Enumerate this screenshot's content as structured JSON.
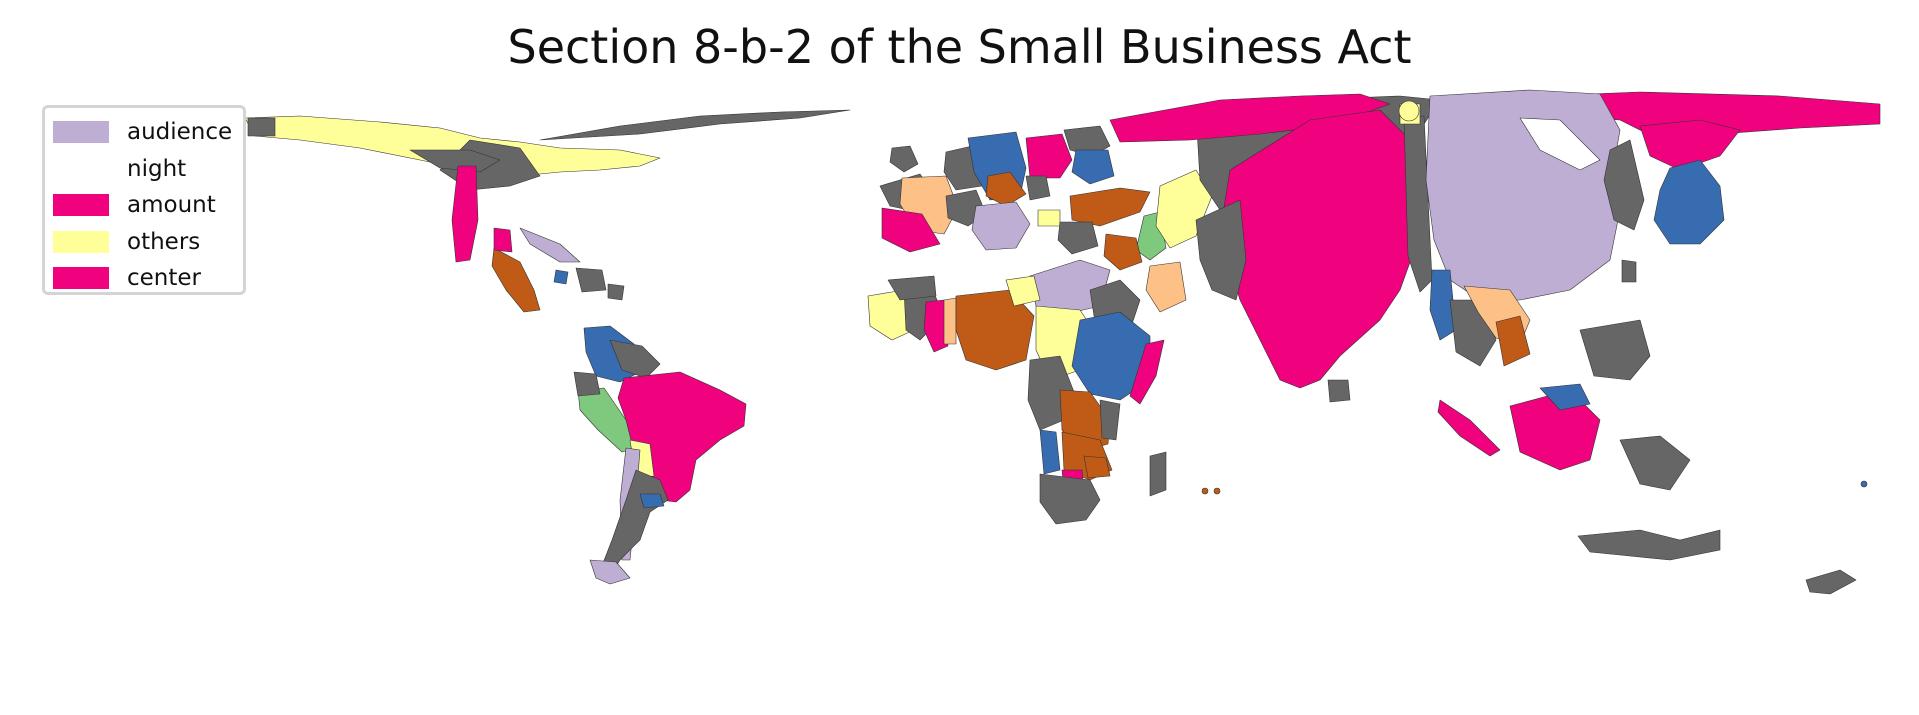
{
  "title": "Section 8-b-2 of the Small Business Act",
  "colors": {
    "lavender": "#beaed4",
    "peach": "#fdc086",
    "yellow": "#ffff99",
    "blue": "#386cb0",
    "magenta": "#f0027f",
    "brown": "#bf5b17",
    "gray": "#666666",
    "green": "#7fc97f"
  },
  "legend": {
    "items": [
      {
        "label": "audience",
        "color": "#beaed4"
      },
      {
        "label": "night",
        "color": "#ffffff"
      },
      {
        "label": "amount",
        "color": "#f0027f"
      },
      {
        "label": "others",
        "color": "#ffff99"
      },
      {
        "label": "center",
        "color": "#f0027f"
      }
    ]
  }
}
